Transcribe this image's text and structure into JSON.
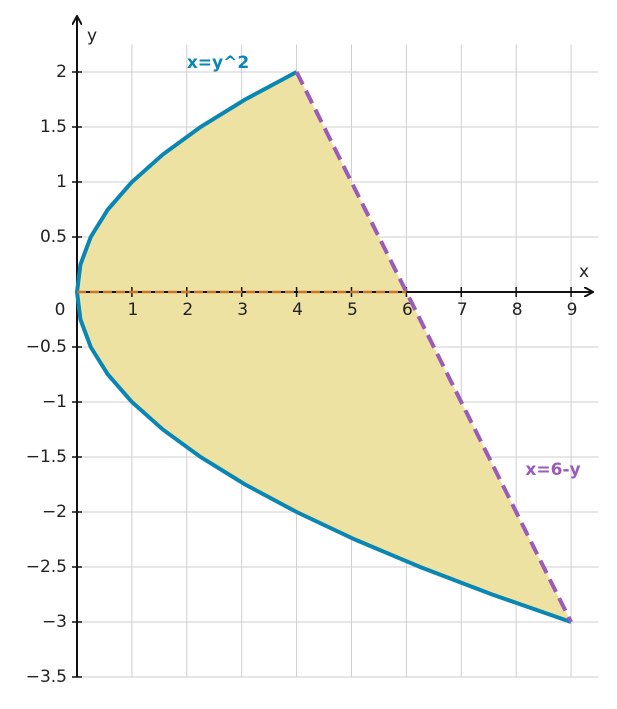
{
  "chart_data": {
    "type": "line",
    "x_label": "x",
    "y_label": "y",
    "xlim": [
      0,
      9.5
    ],
    "ylim": [
      -3.5,
      2.5
    ],
    "xticks": [
      0,
      1,
      2,
      3,
      4,
      5,
      6,
      7,
      8,
      9
    ],
    "yticks": [
      {
        "value": -3.5,
        "label": "−3.5"
      },
      {
        "value": -3,
        "label": "−3"
      },
      {
        "value": -2.5,
        "label": "−2.5"
      },
      {
        "value": -2,
        "label": "−2"
      },
      {
        "value": -1.5,
        "label": "−1.5"
      },
      {
        "value": -1,
        "label": "−1"
      },
      {
        "value": -0.5,
        "label": "−0.5"
      },
      0.5,
      1,
      1.5,
      2
    ],
    "grid": true,
    "fill_color": "#ede2a2",
    "series": [
      {
        "name": "x=y^2",
        "color": "#0a86b5",
        "dashed": false,
        "x": [
          4,
          3.0625,
          2.25,
          1.5625,
          1,
          0.5625,
          0.25,
          0.0625,
          0,
          0.0625,
          0.25,
          0.5625,
          1,
          1.5625,
          2.25,
          3.0625,
          4,
          5.0625,
          6.25,
          7.5625,
          9
        ],
        "values": [
          2,
          1.75,
          1.5,
          1.25,
          1,
          0.75,
          0.5,
          0.25,
          0,
          -0.25,
          -0.5,
          -0.75,
          -1,
          -1.25,
          -1.5,
          -1.75,
          -2,
          -2.25,
          -2.5,
          -2.75,
          -3
        ]
      },
      {
        "name": "x=6-y",
        "color": "#9a5cb8",
        "dashed": true,
        "x": [
          4,
          9
        ],
        "values": [
          2,
          -3
        ]
      },
      {
        "color": "#c8762a",
        "dashed": true,
        "x": [
          0,
          6
        ],
        "values": [
          0,
          0
        ]
      }
    ]
  }
}
